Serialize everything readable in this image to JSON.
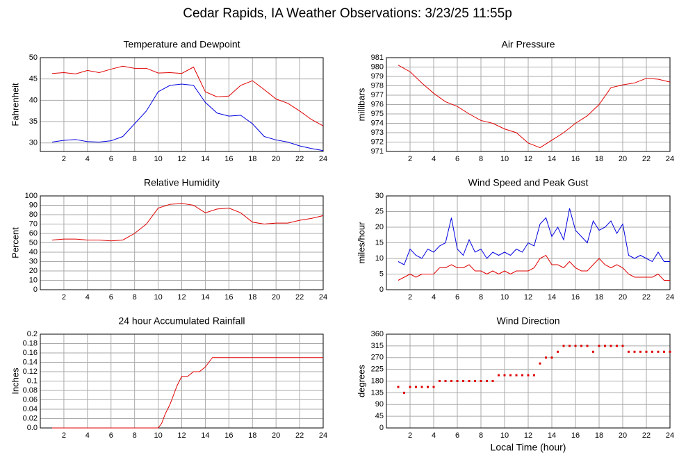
{
  "title": "Cedar Rapids, IA Weather Observations: 3/23/25 11:55p",
  "chart_data": [
    {
      "type": "line",
      "title": "Temperature and Dewpoint",
      "ylabel": "Fahrenheit",
      "grid": true,
      "xlim": [
        0,
        24
      ],
      "xticks": [
        2,
        4,
        6,
        8,
        10,
        12,
        14,
        16,
        18,
        20,
        22,
        24
      ],
      "ylim": [
        28,
        50
      ],
      "yticks": [
        30,
        35,
        40,
        45,
        50
      ],
      "x": [
        1,
        2,
        3,
        4,
        5,
        6,
        7,
        8,
        9,
        10,
        11,
        12,
        13,
        14,
        15,
        16,
        17,
        18,
        19,
        20,
        21,
        22,
        23,
        24
      ],
      "series": [
        {
          "color": "#e00000",
          "values": [
            46.3,
            46.5,
            46.2,
            47.0,
            46.5,
            47.3,
            48.0,
            47.5,
            47.5,
            46.4,
            46.5,
            46.3,
            47.8,
            42.0,
            40.8,
            41.0,
            43.5,
            44.6,
            42.5,
            40.3,
            39.3,
            37.5,
            35.5,
            34.0
          ]
        },
        {
          "color": "#0000e0",
          "values": [
            30.2,
            30.6,
            30.8,
            30.3,
            30.2,
            30.5,
            31.5,
            34.5,
            37.5,
            42.0,
            43.5,
            43.8,
            43.5,
            39.5,
            37.0,
            36.3,
            36.5,
            34.5,
            31.5,
            30.7,
            30.2,
            29.3,
            28.7,
            28.2
          ]
        }
      ]
    },
    {
      "type": "line",
      "title": "Air Pressure",
      "ylabel": "millibars",
      "grid": true,
      "xlim": [
        0,
        24
      ],
      "xticks": [
        2,
        4,
        6,
        8,
        10,
        12,
        14,
        16,
        18,
        20,
        22,
        24
      ],
      "ylim": [
        971,
        981
      ],
      "yticks": [
        971,
        972,
        973,
        974,
        975,
        976,
        977,
        978,
        979,
        980,
        981
      ],
      "x": [
        1,
        2,
        3,
        4,
        5,
        6,
        7,
        8,
        9,
        10,
        11,
        12,
        13,
        14,
        15,
        16,
        17,
        18,
        19,
        20,
        21,
        22,
        23,
        24
      ],
      "series": [
        {
          "color": "#e00000",
          "values": [
            980.2,
            979.5,
            978.3,
            977.2,
            976.3,
            975.8,
            975.0,
            974.3,
            974.0,
            973.4,
            973.0,
            971.9,
            971.4,
            972.2,
            973.0,
            974.0,
            974.8,
            976.0,
            977.8,
            978.1,
            978.3,
            978.8,
            978.7,
            978.4
          ]
        }
      ]
    },
    {
      "type": "line",
      "title": "Relative Humidity",
      "ylabel": "Percent",
      "grid": true,
      "xlim": [
        0,
        24
      ],
      "xticks": [
        2,
        4,
        6,
        8,
        10,
        12,
        14,
        16,
        18,
        20,
        22,
        24
      ],
      "ylim": [
        0,
        100
      ],
      "yticks": [
        0,
        10,
        20,
        30,
        40,
        50,
        60,
        70,
        80,
        90,
        100
      ],
      "x": [
        1,
        2,
        3,
        4,
        5,
        6,
        7,
        8,
        9,
        10,
        11,
        12,
        13,
        14,
        15,
        16,
        17,
        18,
        19,
        20,
        21,
        22,
        23,
        24
      ],
      "series": [
        {
          "color": "#e00000",
          "values": [
            53,
            54,
            54,
            53,
            53,
            52,
            53,
            60,
            70,
            87,
            91,
            92,
            90,
            82,
            86,
            87,
            82,
            72,
            70,
            71,
            71,
            74,
            76,
            79
          ]
        }
      ]
    },
    {
      "type": "line",
      "title": "Wind Speed and Peak Gust",
      "ylabel": "miles/hour",
      "grid": true,
      "xlim": [
        0,
        24
      ],
      "xticks": [
        2,
        4,
        6,
        8,
        10,
        12,
        14,
        16,
        18,
        20,
        22,
        24
      ],
      "ylim": [
        0,
        30
      ],
      "yticks": [
        0,
        5,
        10,
        15,
        20,
        25,
        30
      ],
      "x": [
        1,
        1.5,
        2,
        2.5,
        3,
        3.5,
        4,
        4.5,
        5,
        5.5,
        6,
        6.5,
        7,
        7.5,
        8,
        8.5,
        9,
        9.5,
        10,
        10.5,
        11,
        11.5,
        12,
        12.5,
        13,
        13.5,
        14,
        14.5,
        15,
        15.5,
        16,
        16.5,
        17,
        17.5,
        18,
        18.5,
        19,
        19.5,
        20,
        20.5,
        21,
        21.5,
        22,
        22.5,
        23,
        23.5,
        24
      ],
      "series": [
        {
          "color": "#0000e0",
          "values": [
            9,
            8,
            13,
            11,
            10,
            13,
            12,
            14,
            15,
            23,
            13,
            11,
            16,
            12,
            13,
            10,
            12,
            11,
            12,
            11,
            13,
            12,
            15,
            14,
            21,
            23,
            17,
            20,
            16,
            26,
            19,
            17,
            15,
            22,
            19,
            20,
            22,
            18,
            21,
            11,
            10,
            11,
            10,
            9,
            12,
            9,
            9
          ]
        },
        {
          "color": "#e00000",
          "values": [
            3,
            4,
            5,
            4,
            5,
            5,
            5,
            7,
            7,
            8,
            7,
            7,
            8,
            6,
            6,
            5,
            6,
            5,
            6,
            5,
            6,
            6,
            6,
            7,
            10,
            11,
            8,
            8,
            7,
            9,
            7,
            6,
            6,
            8,
            10,
            8,
            7,
            8,
            7,
            5,
            4,
            4,
            4,
            4,
            5,
            3,
            3
          ]
        }
      ]
    },
    {
      "type": "line",
      "title": "24 hour Accumulated Rainfall",
      "ylabel": "Inches",
      "grid": true,
      "xlim": [
        0,
        24
      ],
      "xticks": [
        2,
        4,
        6,
        8,
        10,
        12,
        14,
        16,
        18,
        20,
        22,
        24
      ],
      "ylim": [
        0,
        0.2
      ],
      "yticks": [
        {
          "value": 0,
          "label": "0.0"
        },
        0.02,
        0.04,
        0.06,
        0.08,
        0.1,
        0.12,
        0.14,
        0.16,
        0.18,
        0.2
      ],
      "x": [
        1,
        10,
        10.3,
        10.6,
        11,
        11.3,
        11.6,
        12,
        12.5,
        13,
        13.5,
        14,
        14.3,
        14.6,
        24
      ],
      "series": [
        {
          "color": "#e00000",
          "values": [
            0,
            0,
            0.01,
            0.03,
            0.05,
            0.07,
            0.09,
            0.11,
            0.11,
            0.12,
            0.12,
            0.13,
            0.14,
            0.15,
            0.15
          ]
        }
      ]
    },
    {
      "type": "scatter",
      "title": "Wind Direction",
      "ylabel": "degrees",
      "xlabel": "Local Time (hour)",
      "grid": true,
      "xlim": [
        0,
        24
      ],
      "xticks": [
        2,
        4,
        6,
        8,
        10,
        12,
        14,
        16,
        18,
        20,
        22,
        24
      ],
      "ylim": [
        0,
        360
      ],
      "yticks": [
        0,
        45,
        90,
        135,
        180,
        225,
        270,
        315,
        360
      ],
      "x": [
        1,
        1.5,
        2,
        2.5,
        3,
        3.5,
        4,
        4.5,
        5,
        5.5,
        6,
        6.5,
        7,
        7.5,
        8,
        8.5,
        9,
        9.5,
        10,
        10.5,
        11,
        11.5,
        12,
        12.5,
        13,
        13.5,
        14,
        14.5,
        15,
        15.5,
        16,
        16.5,
        17,
        17.5,
        18,
        18.5,
        19,
        19.5,
        20,
        20.5,
        21,
        21.5,
        22,
        22.5,
        23,
        23.5,
        24
      ],
      "series": [
        {
          "color": "#e00000",
          "values": [
            157.5,
            135,
            157.5,
            157.5,
            157.5,
            157.5,
            157.5,
            180,
            180,
            180,
            180,
            180,
            180,
            180,
            180,
            180,
            180,
            202.5,
            202.5,
            202.5,
            202.5,
            202.5,
            202.5,
            202.5,
            247.5,
            270,
            270,
            292.5,
            315,
            315,
            315,
            315,
            315,
            292.5,
            315,
            315,
            315,
            315,
            315,
            292.5,
            292.5,
            292.5,
            292.5,
            292.5,
            292.5,
            292.5,
            292.5
          ]
        }
      ]
    }
  ]
}
